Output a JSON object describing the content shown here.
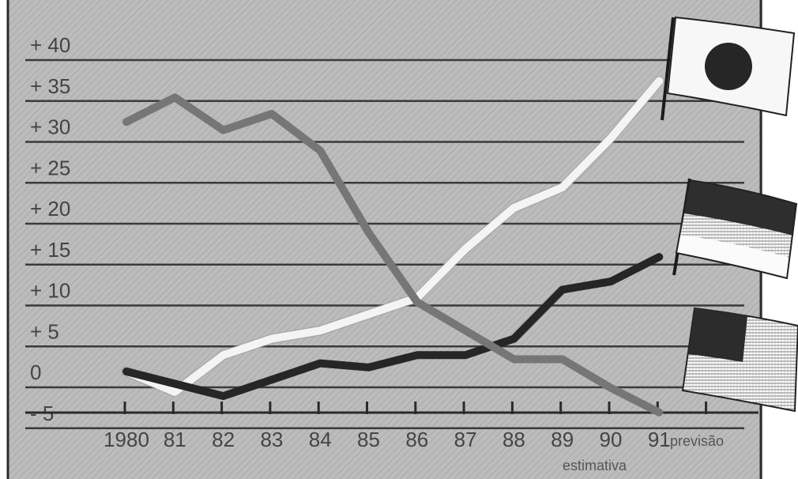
{
  "chart_data": {
    "type": "line",
    "categories": [
      "1980",
      "81",
      "82",
      "83",
      "84",
      "85",
      "86",
      "87",
      "88",
      "89",
      "90",
      "91"
    ],
    "y_ticks": [
      "+ 40",
      "+ 35",
      "+ 30",
      "+ 25",
      "+ 20",
      "+ 15",
      "+ 10",
      "+ 5",
      "0",
      "- 5"
    ],
    "ylim": [
      -5,
      40
    ],
    "grid": true,
    "annotations": {
      "forecast": "previsão",
      "estimate": "estimativa"
    },
    "series": [
      {
        "flag": "japan-flag",
        "color": "#f4f4f4",
        "values": [
          0,
          -2.5,
          2,
          4,
          5,
          7,
          9,
          15,
          20,
          22.5,
          28.5,
          35.5
        ]
      },
      {
        "flag": "germany-flag",
        "color": "#262626",
        "values": [
          0,
          -1.5,
          -3,
          -1,
          1,
          0.5,
          2,
          2,
          4,
          10,
          11,
          14
        ]
      },
      {
        "flag": "usa-flag",
        "color": "#767676",
        "values": [
          30.5,
          33.5,
          29.5,
          31.5,
          27,
          17,
          8.5,
          5,
          1.5,
          1.5,
          -2,
          -5
        ]
      }
    ],
    "colors": {
      "background": "#b9b9b9",
      "grid": "#3a3a3a",
      "border": "#2c2c2c"
    }
  }
}
